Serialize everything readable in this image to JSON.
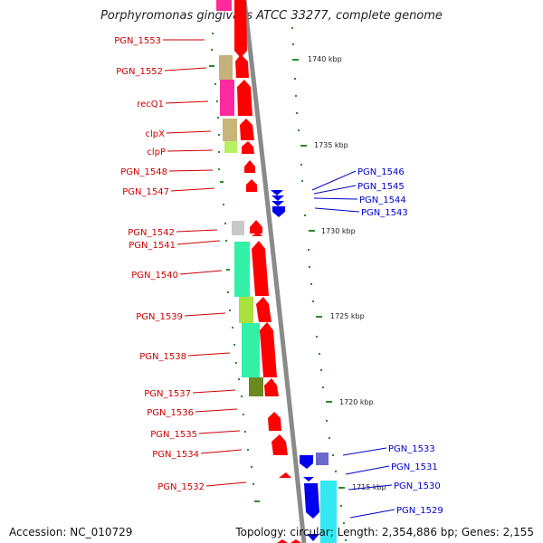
{
  "title": "Porphyromonas gingivalis ATCC 33277, complete genome",
  "accession": "Accession: NC_010729",
  "topology": "Topology: circular; Length: 2,354,886 bp; Genes: 2,155",
  "colors": {
    "forward_gene": "#ff0000",
    "reverse_gene": "#0000ee",
    "backbone": "#888888",
    "tick": "#2a8a2a",
    "label_red": "#cc0000",
    "label_blue": "#0000cc"
  },
  "scale": {
    "markers": [
      {
        "label": "1740 kbp",
        "kbp": 1740
      },
      {
        "label": "1735 kbp",
        "kbp": 1735
      },
      {
        "label": "1730 kbp",
        "kbp": 1730
      },
      {
        "label": "1725 kbp",
        "kbp": 1725
      },
      {
        "label": "1720 kbp",
        "kbp": 1720
      },
      {
        "label": "1715 kbp",
        "kbp": 1715
      }
    ]
  },
  "forward_labels": [
    "PGN_1553",
    "PGN_1552",
    "recQ1",
    "clpX",
    "clpP",
    "PGN_1548",
    "PGN_1547",
    "PGN_1542",
    "PGN_1541",
    "PGN_1540",
    "PGN_1539",
    "PGN_1538",
    "PGN_1537",
    "PGN_1536",
    "PGN_1535",
    "PGN_1534",
    "PGN_1532"
  ],
  "reverse_labels": [
    "PGN_1546",
    "PGN_1545",
    "PGN_1544",
    "PGN_1543",
    "PGN_1533",
    "PGN_1531",
    "PGN_1530",
    "PGN_1529"
  ]
}
